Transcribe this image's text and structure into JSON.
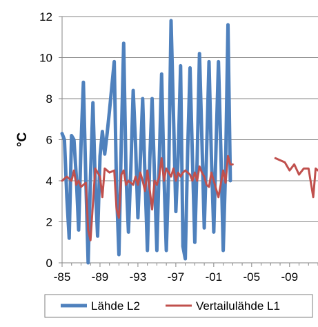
{
  "chart_data": {
    "type": "line",
    "title": "",
    "xlabel": "",
    "ylabel": "°C",
    "xlim": [
      1985,
      2012
    ],
    "ylim": [
      0,
      12
    ],
    "x_ticks": [
      1985,
      1989,
      1993,
      1997,
      2001,
      2005,
      2009
    ],
    "x_tick_labels": [
      "-85",
      "-89",
      "-93",
      "-97",
      "-01",
      "-05",
      "-09"
    ],
    "y_ticks": [
      0,
      2,
      4,
      6,
      8,
      10,
      12
    ],
    "y_tick_labels": [
      "0",
      "2",
      "4",
      "6",
      "8",
      "10",
      "12"
    ],
    "grid": "horizontal",
    "legend_position": "bottom",
    "series": [
      {
        "name": "Lähde L2",
        "color": "#4f81bd",
        "points": [
          [
            1985.0,
            6.3
          ],
          [
            1985.25,
            6.0
          ],
          [
            1985.5,
            3.2
          ],
          [
            1985.75,
            1.2
          ],
          [
            1986.0,
            6.2
          ],
          [
            1986.25,
            6.0
          ],
          [
            1986.5,
            4.2
          ],
          [
            1986.75,
            1.6
          ],
          [
            1987.0,
            5.8
          ],
          [
            1987.25,
            8.8
          ],
          [
            1987.5,
            4.1
          ],
          [
            1987.75,
            0.0
          ],
          [
            1988.0,
            4.2
          ],
          [
            1988.25,
            7.8
          ],
          [
            1988.5,
            3.9
          ],
          [
            1988.75,
            1.3
          ],
          [
            1989.0,
            5.2
          ],
          [
            1989.25,
            6.4
          ],
          [
            1989.5,
            5.3
          ],
          [
            1989.75,
            6.3
          ],
          [
            1990.0,
            7.4
          ],
          [
            1990.5,
            9.8
          ],
          [
            1990.75,
            3.5
          ],
          [
            1991.0,
            0.4
          ],
          [
            1991.25,
            6.0
          ],
          [
            1991.5,
            10.7
          ],
          [
            1991.75,
            4.2
          ],
          [
            1992.0,
            1.5
          ],
          [
            1992.25,
            4.5
          ],
          [
            1992.5,
            8.4
          ],
          [
            1992.75,
            5.8
          ],
          [
            1993.0,
            2.2
          ],
          [
            1993.25,
            5.0
          ],
          [
            1993.5,
            8.0
          ],
          [
            1993.75,
            4.2
          ],
          [
            1994.0,
            0.6
          ],
          [
            1994.25,
            5.0
          ],
          [
            1994.5,
            8.0
          ],
          [
            1994.75,
            4.2
          ],
          [
            1995.0,
            0.6
          ],
          [
            1995.5,
            9.2
          ],
          [
            1995.75,
            4.3
          ],
          [
            1996.0,
            0.6
          ],
          [
            1996.25,
            4.5
          ],
          [
            1996.5,
            11.8
          ],
          [
            1996.75,
            7.2
          ],
          [
            1997.0,
            2.5
          ],
          [
            1997.25,
            5.2
          ],
          [
            1997.5,
            9.6
          ],
          [
            1997.75,
            0.8
          ],
          [
            1998.0,
            0.2
          ],
          [
            1998.25,
            5.5
          ],
          [
            1998.5,
            9.5
          ],
          [
            1998.75,
            5.2
          ],
          [
            1999.0,
            1.0
          ],
          [
            1999.25,
            5.0
          ],
          [
            1999.5,
            10.2
          ],
          [
            1999.75,
            6.0
          ],
          [
            2000.0,
            1.7
          ],
          [
            2000.25,
            5.4
          ],
          [
            2000.5,
            9.8
          ],
          [
            2000.75,
            5.2
          ],
          [
            2001.0,
            1.5
          ],
          [
            2001.25,
            5.8
          ],
          [
            2001.5,
            9.8
          ],
          [
            2001.75,
            5.4
          ],
          [
            2002.0,
            0.6
          ],
          [
            2002.25,
            4.6
          ],
          [
            2002.5,
            11.6
          ],
          [
            2002.75,
            4.0
          ]
        ]
      },
      {
        "name": "Vertailulähde L1",
        "color": "#c0504d",
        "points": [
          [
            1985.0,
            4.0
          ],
          [
            1985.5,
            4.2
          ],
          [
            1986.0,
            4.0
          ],
          [
            1986.25,
            4.5
          ],
          [
            1986.5,
            3.8
          ],
          [
            1986.75,
            4.0
          ],
          [
            1987.0,
            3.7
          ],
          [
            1987.5,
            3.9
          ],
          [
            1987.75,
            1.6
          ],
          [
            1988.0,
            1.1
          ],
          [
            1988.5,
            4.6
          ],
          [
            1989.0,
            4.2
          ],
          [
            1989.25,
            3.2
          ],
          [
            1989.5,
            4.6
          ],
          [
            1990.0,
            4.4
          ],
          [
            1990.5,
            4.5
          ],
          [
            1990.75,
            2.6
          ],
          [
            1991.0,
            2.2
          ],
          [
            1991.25,
            4.3
          ],
          [
            1991.5,
            4.5
          ],
          [
            1991.75,
            3.8
          ],
          [
            1992.0,
            4.0
          ],
          [
            1992.5,
            3.8
          ],
          [
            1992.75,
            4.2
          ],
          [
            1993.0,
            3.8
          ],
          [
            1993.25,
            4.4
          ],
          [
            1993.5,
            4.0
          ],
          [
            1993.75,
            3.5
          ],
          [
            1994.0,
            4.5
          ],
          [
            1994.5,
            2.6
          ],
          [
            1994.75,
            4.0
          ],
          [
            1995.0,
            3.8
          ],
          [
            1995.25,
            4.2
          ],
          [
            1995.5,
            5.1
          ],
          [
            1995.75,
            4.0
          ],
          [
            1996.0,
            4.6
          ],
          [
            1996.5,
            4.2
          ],
          [
            1996.75,
            4.6
          ],
          [
            1997.0,
            4.0
          ],
          [
            1997.25,
            4.4
          ],
          [
            1997.5,
            4.2
          ],
          [
            1997.75,
            4.4
          ],
          [
            1998.0,
            4.5
          ],
          [
            1998.5,
            4.3
          ],
          [
            1998.75,
            4.0
          ],
          [
            1999.0,
            4.4
          ],
          [
            1999.25,
            4.0
          ],
          [
            1999.5,
            4.7
          ],
          [
            1999.75,
            4.4
          ],
          [
            2000.0,
            4.2
          ],
          [
            2000.25,
            3.8
          ],
          [
            2000.5,
            3.7
          ],
          [
            2000.75,
            4.4
          ],
          [
            2001.0,
            4.0
          ],
          [
            2001.5,
            3.2
          ],
          [
            2002.0,
            4.5
          ],
          [
            2002.25,
            3.9
          ],
          [
            2002.5,
            5.2
          ],
          [
            2002.75,
            4.8
          ],
          [
            2003.0,
            4.8
          ],
          null,
          [
            2007.5,
            5.1
          ],
          [
            2008.0,
            5.0
          ],
          [
            2008.5,
            4.9
          ],
          [
            2009.0,
            4.5
          ],
          [
            2009.5,
            4.8
          ],
          [
            2010.0,
            4.3
          ],
          [
            2010.5,
            4.6
          ],
          [
            2011.0,
            4.6
          ],
          [
            2011.5,
            3.2
          ],
          [
            2011.75,
            4.6
          ],
          [
            2012.0,
            4.5
          ]
        ]
      }
    ]
  }
}
